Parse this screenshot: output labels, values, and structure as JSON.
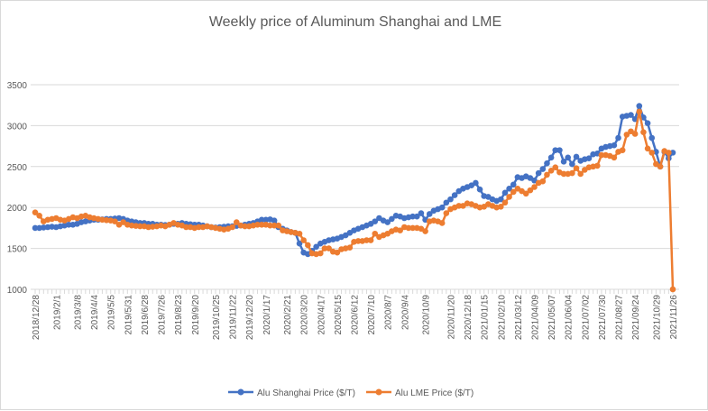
{
  "chart_data": {
    "type": "line",
    "title": "Weekly price of Aluminum Shanghai and LME",
    "xlabel": "",
    "ylabel": "",
    "ylim": [
      1000,
      3500
    ],
    "y_ticks": [
      1000,
      1500,
      2000,
      2500,
      3000,
      3500
    ],
    "grid": true,
    "legend_position": "bottom",
    "x_unit": "week index from 2018/12/28",
    "x_ticks": [
      {
        "week": 0,
        "label": "2018/12/28"
      },
      {
        "week": 5,
        "label": "2019/2/1"
      },
      {
        "week": 10,
        "label": "2019/3/8"
      },
      {
        "week": 14,
        "label": "2019/4/4"
      },
      {
        "week": 18,
        "label": "2019/5/5"
      },
      {
        "week": 22,
        "label": "2019/5/31"
      },
      {
        "week": 26,
        "label": "2019/6/28"
      },
      {
        "week": 30,
        "label": "2019/7/26"
      },
      {
        "week": 34,
        "label": "2019/8/23"
      },
      {
        "week": 38,
        "label": "2019/9/20"
      },
      {
        "week": 43,
        "label": "2019/10/25"
      },
      {
        "week": 47,
        "label": "2019/11/22"
      },
      {
        "week": 51,
        "label": "2019/12/20"
      },
      {
        "week": 55,
        "label": "2020/1/17"
      },
      {
        "week": 60,
        "label": "2020/2/21"
      },
      {
        "week": 64,
        "label": "2020/3/20"
      },
      {
        "week": 68,
        "label": "2020/4/17"
      },
      {
        "week": 72,
        "label": "2020/5/15"
      },
      {
        "week": 76,
        "label": "2020/6/12"
      },
      {
        "week": 80,
        "label": "2020/7/10"
      },
      {
        "week": 84,
        "label": "2020/8/7"
      },
      {
        "week": 88,
        "label": "2020/9/4"
      },
      {
        "week": 93,
        "label": "2020/10/9"
      },
      {
        "week": 99,
        "label": "2020/11/20"
      },
      {
        "week": 103,
        "label": "2020/12/18"
      },
      {
        "week": 107,
        "label": "2021/01/15"
      },
      {
        "week": 111,
        "label": "2021/02/10"
      },
      {
        "week": 115,
        "label": "2021/03/12"
      },
      {
        "week": 119,
        "label": "2021/04/09"
      },
      {
        "week": 123,
        "label": "2021/05/07"
      },
      {
        "week": 127,
        "label": "2021/06/04"
      },
      {
        "week": 131,
        "label": "2021/07/02"
      },
      {
        "week": 135,
        "label": "2021/07/30"
      },
      {
        "week": 139,
        "label": "2021/08/27"
      },
      {
        "week": 143,
        "label": "2021/09/24"
      },
      {
        "week": 148,
        "label": "2021/10/29"
      },
      {
        "week": 152,
        "label": "2021/11/26"
      }
    ],
    "series": [
      {
        "name": "Alu Shanghai Price ($/T)",
        "color": "#4472C4",
        "values": [
          1750,
          1750,
          1755,
          1760,
          1765,
          1760,
          1770,
          1780,
          1790,
          1790,
          1800,
          1820,
          1830,
          1840,
          1850,
          1850,
          1855,
          1860,
          1860,
          1865,
          1870,
          1860,
          1840,
          1830,
          1820,
          1810,
          1810,
          1800,
          1800,
          1790,
          1790,
          1785,
          1790,
          1800,
          1800,
          1810,
          1800,
          1795,
          1790,
          1790,
          1780,
          1770,
          1760,
          1755,
          1760,
          1765,
          1770,
          1770,
          1775,
          1780,
          1790,
          1800,
          1810,
          1830,
          1850,
          1850,
          1855,
          1840,
          1760,
          1740,
          1720,
          1700,
          1690,
          1560,
          1450,
          1430,
          1470,
          1520,
          1560,
          1580,
          1600,
          1610,
          1620,
          1640,
          1660,
          1690,
          1720,
          1740,
          1760,
          1780,
          1800,
          1830,
          1870,
          1840,
          1820,
          1860,
          1900,
          1890,
          1870,
          1880,
          1890,
          1890,
          1930,
          1850,
          1920,
          1960,
          1980,
          2000,
          2060,
          2100,
          2150,
          2200,
          2230,
          2250,
          2270,
          2300,
          2220,
          2140,
          2130,
          2100,
          2080,
          2100,
          2180,
          2230,
          2280,
          2370,
          2360,
          2380,
          2360,
          2330,
          2420,
          2470,
          2540,
          2610,
          2700,
          2700,
          2560,
          2610,
          2530,
          2620,
          2570,
          2590,
          2600,
          2650,
          2660,
          2720,
          2740,
          2750,
          2760,
          2850,
          3110,
          3120,
          3130,
          3080,
          3240,
          3100,
          3030,
          2850,
          2680,
          2500,
          2680,
          2600,
          2670
        ]
      },
      {
        "name": "Alu LME Price ($/T)",
        "color": "#ED7D31",
        "values": [
          1940,
          1900,
          1830,
          1850,
          1860,
          1870,
          1850,
          1840,
          1860,
          1880,
          1870,
          1890,
          1900,
          1880,
          1870,
          1860,
          1850,
          1845,
          1840,
          1830,
          1790,
          1820,
          1790,
          1780,
          1775,
          1770,
          1770,
          1760,
          1765,
          1770,
          1780,
          1770,
          1790,
          1810,
          1790,
          1780,
          1760,
          1760,
          1750,
          1760,
          1760,
          1770,
          1760,
          1750,
          1740,
          1730,
          1740,
          1760,
          1820,
          1780,
          1770,
          1770,
          1780,
          1790,
          1790,
          1790,
          1780,
          1780,
          1780,
          1720,
          1710,
          1700,
          1690,
          1680,
          1600,
          1540,
          1440,
          1430,
          1440,
          1500,
          1500,
          1460,
          1450,
          1490,
          1500,
          1510,
          1580,
          1590,
          1590,
          1600,
          1600,
          1680,
          1640,
          1660,
          1680,
          1710,
          1730,
          1720,
          1760,
          1750,
          1750,
          1750,
          1740,
          1710,
          1830,
          1840,
          1830,
          1810,
          1930,
          1980,
          2000,
          2020,
          2020,
          2050,
          2040,
          2020,
          2000,
          2010,
          2040,
          2020,
          2000,
          2010,
          2060,
          2130,
          2190,
          2230,
          2200,
          2170,
          2210,
          2250,
          2300,
          2320,
          2400,
          2450,
          2490,
          2430,
          2410,
          2410,
          2420,
          2480,
          2410,
          2460,
          2490,
          2500,
          2510,
          2640,
          2640,
          2630,
          2610,
          2680,
          2700,
          2890,
          2930,
          2900,
          3170,
          2920,
          2720,
          2670,
          2530,
          2500,
          2690,
          2670,
          1000
        ]
      }
    ]
  }
}
